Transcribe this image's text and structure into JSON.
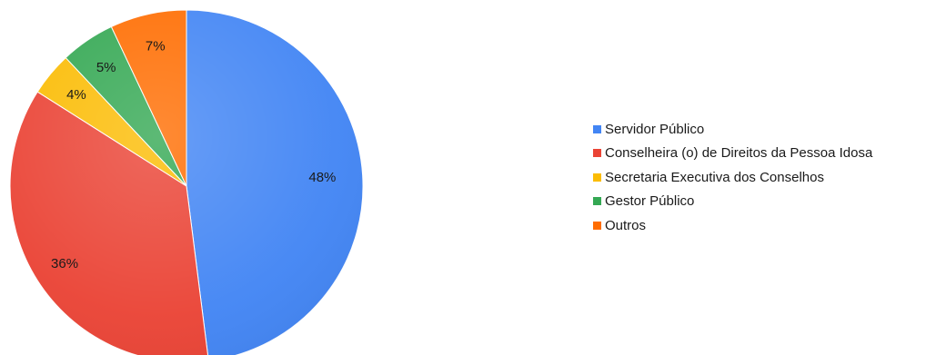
{
  "chart_data": {
    "type": "pie",
    "title": "",
    "legend_position": "right",
    "start_angle_deg": 0,
    "direction": "clockwise",
    "slices": [
      {
        "label": "Servidor Público",
        "value": 48,
        "display": "48%",
        "color": "#4285f4"
      },
      {
        "label": "Conselheira (o) de Direitos da Pessoa Idosa",
        "value": 36,
        "display": "36%",
        "color": "#ea4335"
      },
      {
        "label": "Secretaria Executiva dos Conselhos",
        "value": 4,
        "display": "4%",
        "color": "#fbbc04"
      },
      {
        "label": "Gestor Público",
        "value": 5,
        "display": "5%",
        "color": "#34a853"
      },
      {
        "label": "Outros",
        "value": 7,
        "display": "7%",
        "color": "#ff6d01"
      }
    ]
  }
}
